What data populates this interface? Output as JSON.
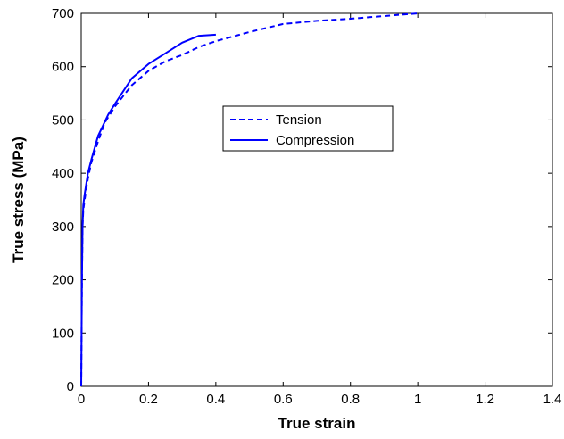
{
  "chart_data": {
    "type": "line",
    "xlabel": "True strain",
    "ylabel": "True stress (MPa)",
    "xlim": [
      0,
      1.4
    ],
    "ylim": [
      0,
      700
    ],
    "xticks": [
      0,
      0.2,
      0.4,
      0.6,
      0.8,
      1,
      1.2,
      1.4
    ],
    "xtick_labels": [
      "0",
      "0.2",
      "0.4",
      "0.6",
      "0.8",
      "1",
      "1.2",
      "1.4"
    ],
    "yticks": [
      0,
      100,
      200,
      300,
      400,
      500,
      600,
      700
    ],
    "ytick_labels": [
      "0",
      "100",
      "200",
      "300",
      "400",
      "500",
      "600",
      "700"
    ],
    "grid": false,
    "legend_position": "center",
    "series": [
      {
        "name": "Tension",
        "style": "dashed",
        "color": "#0000ff",
        "x": [
          0,
          0.002,
          0.004,
          0.006,
          0.01,
          0.02,
          0.03,
          0.05,
          0.07,
          0.1,
          0.15,
          0.2,
          0.25,
          0.3,
          0.35,
          0.4,
          0.5,
          0.6,
          0.7,
          0.8,
          0.9,
          1.0
        ],
        "y": [
          0,
          200,
          300,
          330,
          350,
          390,
          420,
          460,
          495,
          525,
          565,
          592,
          610,
          622,
          637,
          648,
          665,
          680,
          686,
          690,
          695,
          700
        ]
      },
      {
        "name": "Compression",
        "style": "solid",
        "color": "#0000ff",
        "x": [
          0,
          0.002,
          0.004,
          0.006,
          0.01,
          0.02,
          0.03,
          0.05,
          0.08,
          0.1,
          0.15,
          0.2,
          0.25,
          0.3,
          0.35,
          0.4
        ],
        "y": [
          0,
          200,
          300,
          340,
          360,
          400,
          425,
          470,
          510,
          530,
          578,
          605,
          625,
          645,
          658,
          660
        ]
      }
    ]
  }
}
